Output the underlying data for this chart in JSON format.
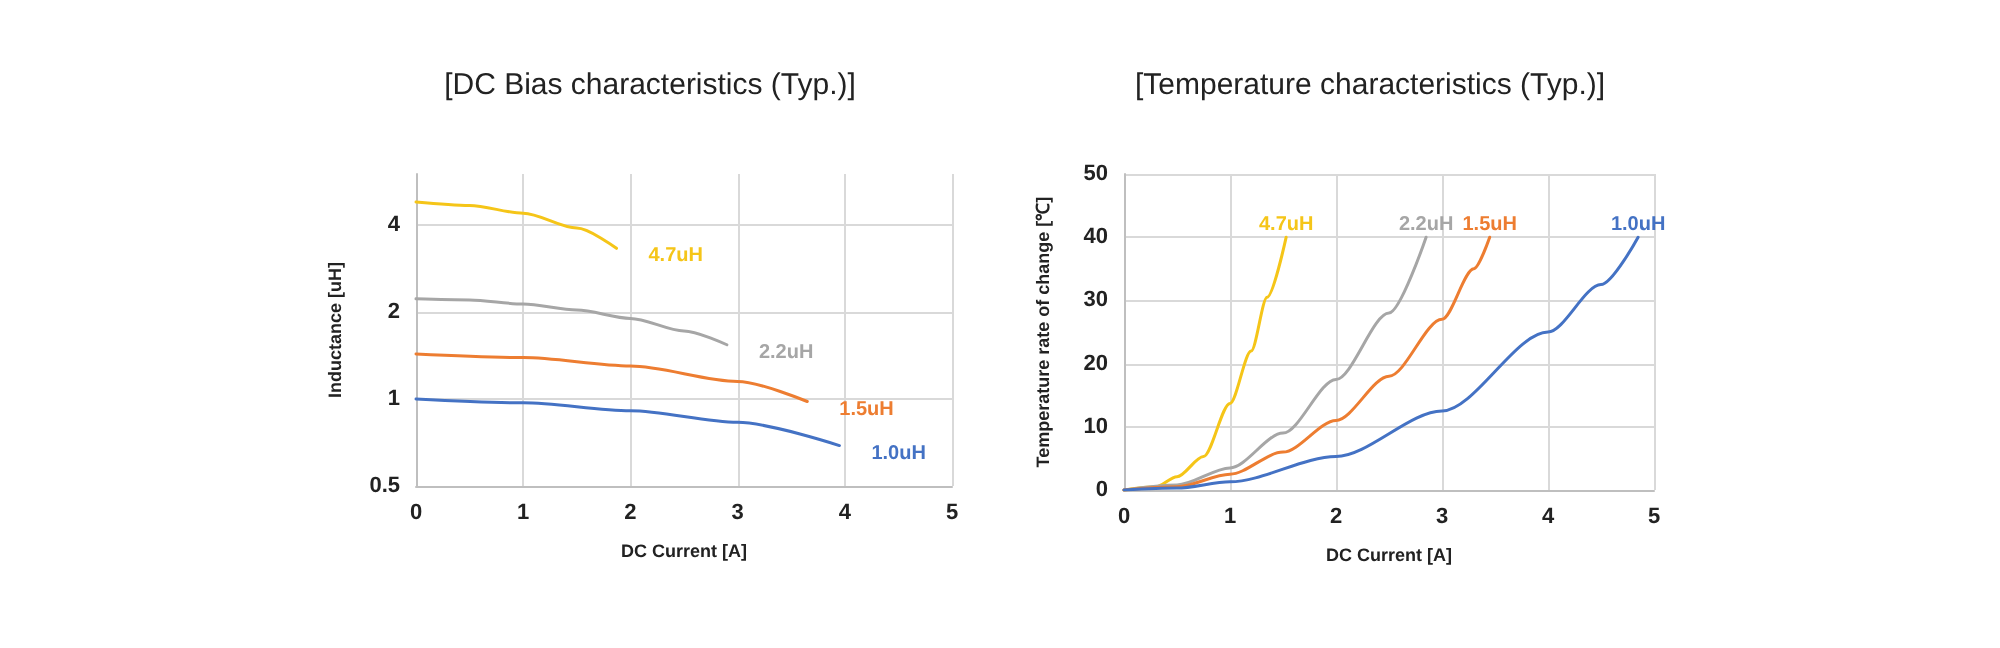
{
  "chart_data": [
    {
      "type": "line",
      "title": "[DC Bias characteristics (Typ.)]",
      "xlabel": "DC Current [A]",
      "ylabel": "Inductance [uH]",
      "log": "y",
      "grid": true,
      "legend": false,
      "marker": "none",
      "line_style": "solid",
      "xlim": [
        0,
        5
      ],
      "xticks": [
        0,
        1,
        2,
        3,
        4,
        5
      ],
      "ylim": [
        0.5,
        6
      ],
      "yticks": [
        0.5,
        1,
        2,
        4
      ],
      "series": [
        {
          "name": "4.7uH",
          "color": "#f5c518",
          "x": [
            0,
            0.5,
            1.0,
            1.5,
            1.87
          ],
          "values": [
            4.8,
            4.67,
            4.39,
            3.9,
            3.32
          ]
        },
        {
          "name": "2.2uH",
          "color": "#a6a6a6",
          "x": [
            0,
            0.5,
            1.0,
            1.5,
            2.0,
            2.5,
            2.9
          ],
          "values": [
            2.22,
            2.2,
            2.13,
            2.03,
            1.9,
            1.72,
            1.54
          ]
        },
        {
          "name": "1.5uH",
          "color": "#ed7d31",
          "x": [
            0,
            1,
            2,
            3,
            3.65
          ],
          "values": [
            1.43,
            1.39,
            1.3,
            1.15,
            0.98
          ]
        },
        {
          "name": "1.0uH",
          "color": "#4472c4",
          "x": [
            0,
            1,
            2,
            3,
            3.95
          ],
          "values": [
            1.0,
            0.97,
            0.91,
            0.83,
            0.69
          ]
        }
      ]
    },
    {
      "type": "line",
      "title": "[Temperature characteristics (Typ.)]",
      "xlabel": "DC Current [A]",
      "ylabel": "Temperature rate of change [℃]",
      "grid": true,
      "legend": false,
      "marker": "none",
      "line_style": "solid",
      "xlim": [
        0,
        5
      ],
      "xticks": [
        0,
        1,
        2,
        3,
        4,
        5
      ],
      "ylim": [
        0,
        50
      ],
      "yticks": [
        0,
        10,
        20,
        30,
        40,
        50
      ],
      "series": [
        {
          "name": "4.7uH",
          "color": "#f5c518",
          "x": [
            0,
            0.3,
            0.5,
            0.75,
            1.0,
            1.2,
            1.35,
            1.53
          ],
          "values": [
            0,
            0.5,
            2.1,
            5.3,
            13.7,
            22,
            30.5,
            40
          ]
        },
        {
          "name": "2.2uH",
          "color": "#a6a6a6",
          "x": [
            0,
            0.5,
            1.0,
            1.5,
            2.0,
            2.5,
            2.85
          ],
          "values": [
            0,
            0.8,
            3.5,
            9,
            17.5,
            28,
            40
          ]
        },
        {
          "name": "1.5uH",
          "color": "#ed7d31",
          "x": [
            0,
            0.5,
            1.0,
            1.5,
            2.0,
            2.5,
            3.0,
            3.3,
            3.45
          ],
          "values": [
            0,
            0.5,
            2.5,
            6,
            11,
            18,
            27,
            35,
            40
          ]
        },
        {
          "name": "1.0uH",
          "color": "#4472c4",
          "x": [
            0,
            0.5,
            1,
            2,
            3,
            4,
            4.5,
            4.85
          ],
          "values": [
            0,
            0.3,
            1.3,
            5.3,
            12.5,
            25,
            32.5,
            40
          ]
        }
      ]
    }
  ]
}
